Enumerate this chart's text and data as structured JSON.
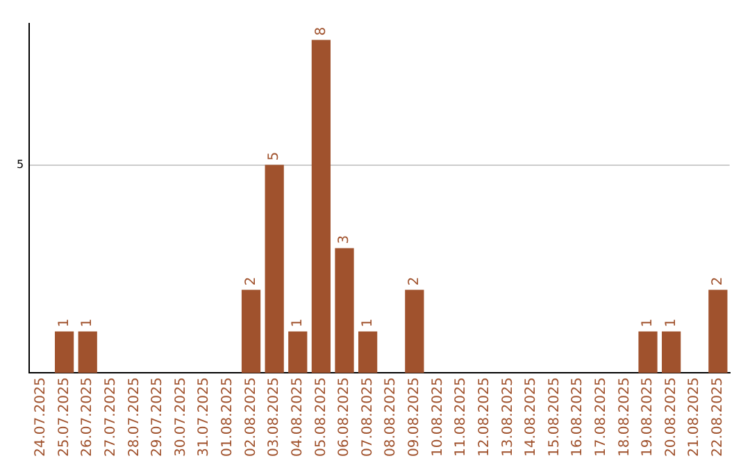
{
  "chart_data": {
    "type": "bar",
    "categories": [
      "24.07.2025",
      "25.07.2025",
      "26.07.2025",
      "27.07.2025",
      "28.07.2025",
      "29.07.2025",
      "30.07.2025",
      "31.07.2025",
      "01.08.2025",
      "02.08.2025",
      "03.08.2025",
      "04.08.2025",
      "05.08.2025",
      "06.08.2025",
      "07.08.2025",
      "08.08.2025",
      "09.08.2025",
      "10.08.2025",
      "11.08.2025",
      "12.08.2025",
      "13.08.2025",
      "14.08.2025",
      "15.08.2025",
      "16.08.2025",
      "17.08.2025",
      "18.08.2025",
      "19.08.2025",
      "20.08.2025",
      "21.08.2025",
      "22.08.2025"
    ],
    "values": [
      0,
      1,
      1,
      0,
      0,
      0,
      0,
      0,
      0,
      2,
      5,
      1,
      8,
      3,
      1,
      0,
      2,
      0,
      0,
      0,
      0,
      0,
      0,
      0,
      0,
      0,
      1,
      1,
      0,
      2
    ],
    "value_labels": [
      null,
      "1",
      "1",
      null,
      null,
      null,
      null,
      null,
      null,
      "2",
      "5",
      "1",
      "8",
      "3",
      "1",
      null,
      "2",
      null,
      null,
      null,
      null,
      null,
      null,
      null,
      null,
      null,
      "1",
      "1",
      null,
      "2"
    ],
    "color": "#a0522d",
    "ylim": [
      0,
      8.4
    ],
    "yticks": [
      5
    ],
    "grid": "y",
    "legend": false
  }
}
